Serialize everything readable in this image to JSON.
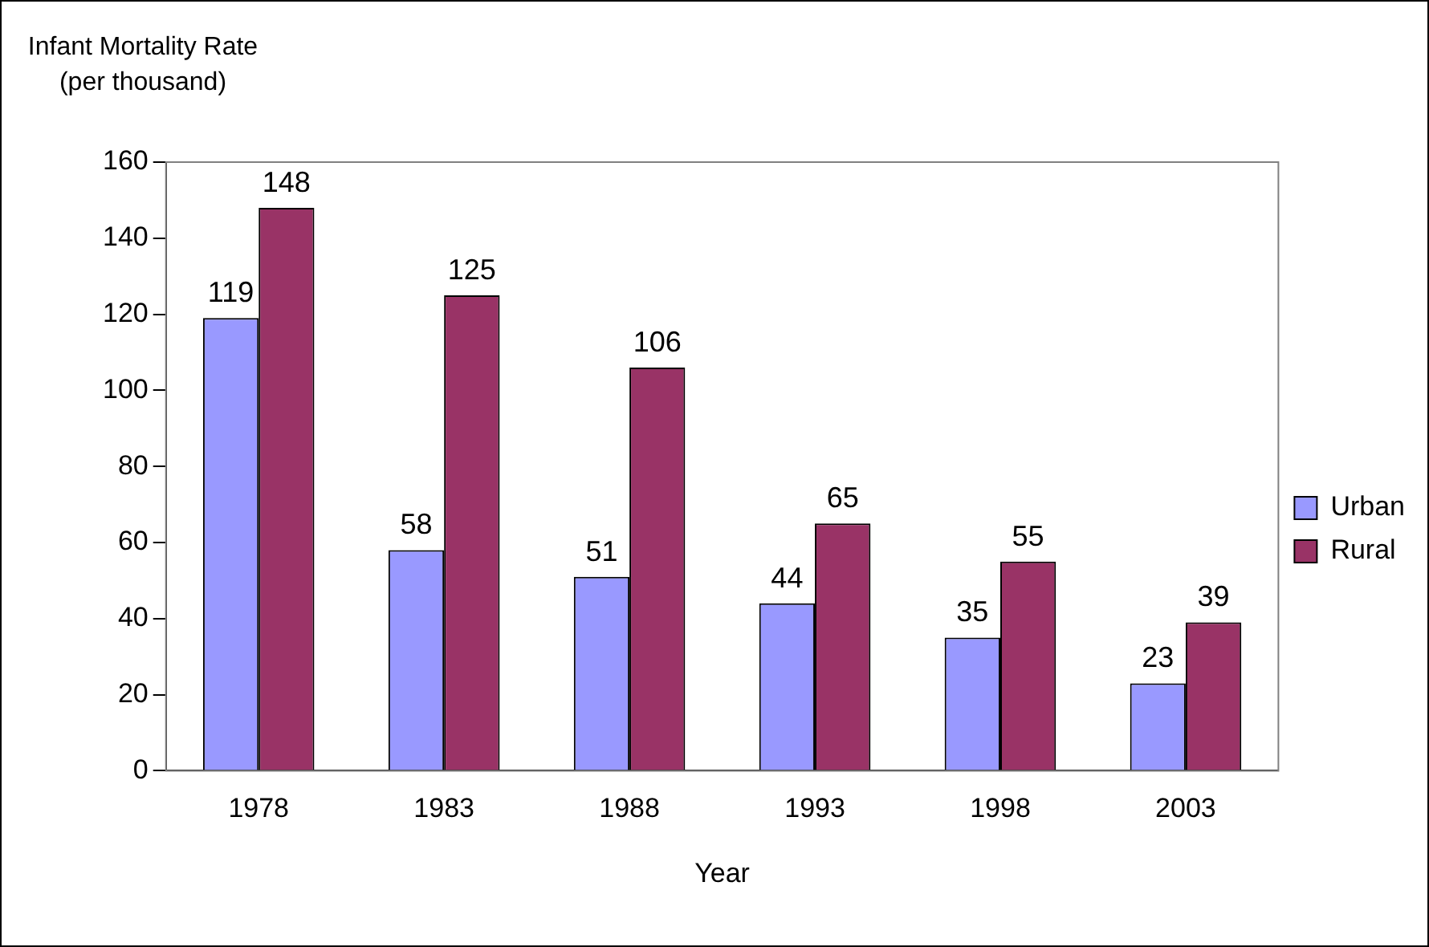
{
  "chart_data": {
    "type": "bar",
    "xlabel": "Year",
    "ylabel": "Infant Mortality Rate (per thousand)",
    "categories": [
      "1978",
      "1983",
      "1988",
      "1993",
      "1998",
      "2003"
    ],
    "series": [
      {
        "name": "Urban",
        "color": "#9999ff",
        "values": [
          119,
          58,
          51,
          44,
          35,
          23
        ]
      },
      {
        "name": "Rural",
        "color": "#993366",
        "values": [
          148,
          125,
          106,
          65,
          55,
          39
        ]
      }
    ],
    "ylim": [
      0,
      160
    ],
    "yticks": [
      0,
      20,
      40,
      60,
      80,
      100,
      120,
      140,
      160
    ],
    "grid": false,
    "legend": "right",
    "data_labels": true
  }
}
